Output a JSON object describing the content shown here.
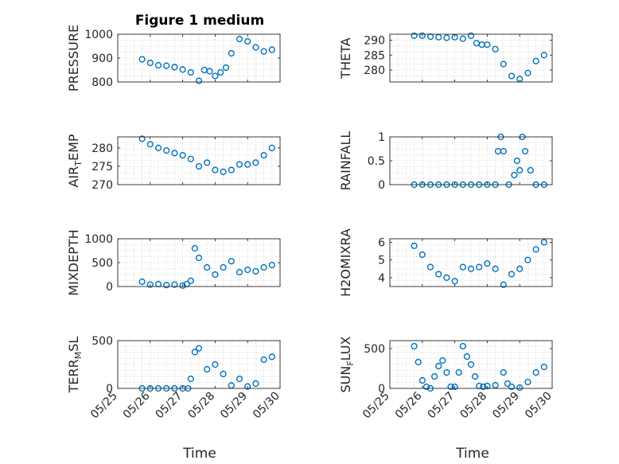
{
  "figure_title": "Figure 1 medium",
  "colors": {
    "marker": "#0072BD",
    "axis": "#262626",
    "grid": "#cfcfcf"
  },
  "chart_data": [
    {
      "type": "scatter",
      "id": "pressure",
      "ylabel": "PRESSURE",
      "xlim": [
        "05/25",
        "05/30"
      ],
      "ylim": [
        800,
        1000
      ],
      "yticks": [
        800,
        900,
        1000
      ],
      "x": [
        "05/25 18:00",
        "05/26 00:00",
        "05/26 06:00",
        "05/26 12:00",
        "05/26 18:00",
        "05/27 00:00",
        "05/27 06:00",
        "05/27 12:00",
        "05/27 16:00",
        "05/27 20:00",
        "05/28 00:00",
        "05/28 04:00",
        "05/28 08:00",
        "05/28 12:00",
        "05/28 18:00",
        "05/29 00:00",
        "05/29 06:00",
        "05/29 12:00",
        "05/29 18:00"
      ],
      "y": [
        895,
        880,
        870,
        868,
        862,
        852,
        840,
        805,
        850,
        845,
        825,
        840,
        860,
        920,
        980,
        970,
        945,
        928,
        935
      ]
    },
    {
      "type": "scatter",
      "id": "theta",
      "ylabel": "THETA",
      "xlim": [
        "05/25",
        "05/30"
      ],
      "ylim": [
        276,
        292
      ],
      "yticks": [
        280,
        285,
        290
      ],
      "x": [
        "05/25 18:00",
        "05/26 00:00",
        "05/26 06:00",
        "05/26 12:00",
        "05/26 18:00",
        "05/27 00:00",
        "05/27 06:00",
        "05/27 12:00",
        "05/27 16:00",
        "05/27 20:00",
        "05/28 00:00",
        "05/28 06:00",
        "05/28 12:00",
        "05/28 18:00",
        "05/29 00:00",
        "05/29 06:00",
        "05/29 12:00",
        "05/29 18:00"
      ],
      "y": [
        291.5,
        291.5,
        291.2,
        291.0,
        290.8,
        291.0,
        290.5,
        291.5,
        289.0,
        288.5,
        288.5,
        287.0,
        282.0,
        278.0,
        277.0,
        279.0,
        283.0,
        285.0
      ]
    },
    {
      "type": "scatter",
      "id": "air_temp",
      "ylabel": "AIR_TEMP",
      "xlim": [
        "05/25",
        "05/30"
      ],
      "ylim": [
        270,
        283
      ],
      "yticks": [
        270,
        275,
        280
      ],
      "x": [
        "05/25 18:00",
        "05/26 00:00",
        "05/26 06:00",
        "05/26 12:00",
        "05/26 18:00",
        "05/27 00:00",
        "05/27 06:00",
        "05/27 12:00",
        "05/27 18:00",
        "05/28 00:00",
        "05/28 06:00",
        "05/28 12:00",
        "05/28 18:00",
        "05/29 00:00",
        "05/29 06:00",
        "05/29 12:00",
        "05/29 18:00"
      ],
      "y": [
        282.5,
        281.0,
        280.0,
        279.3,
        278.6,
        278.0,
        277.0,
        275.0,
        276.0,
        274.0,
        273.5,
        274.0,
        275.5,
        275.5,
        276.0,
        278.0,
        280.0
      ]
    },
    {
      "type": "scatter",
      "id": "rainfall",
      "ylabel": "RAINFALL",
      "xlim": [
        "05/25",
        "05/30"
      ],
      "ylim": [
        0,
        1
      ],
      "yticks": [
        0,
        0.5,
        1
      ],
      "x": [
        "05/25 18:00",
        "05/26 00:00",
        "05/26 06:00",
        "05/26 12:00",
        "05/26 18:00",
        "05/27 00:00",
        "05/27 06:00",
        "05/27 12:00",
        "05/27 18:00",
        "05/28 00:00",
        "05/28 06:00",
        "05/28 08:00",
        "05/28 10:00",
        "05/28 12:00",
        "05/28 16:00",
        "05/28 20:00",
        "05/28 22:00",
        "05/29 00:00",
        "05/29 02:00",
        "05/29 04:00",
        "05/29 08:00",
        "05/29 12:00",
        "05/29 18:00"
      ],
      "y": [
        0,
        0,
        0,
        0,
        0,
        0,
        0,
        0,
        0,
        0,
        0,
        0.7,
        1.0,
        0.7,
        0,
        0.2,
        0.5,
        0.3,
        1.0,
        0.7,
        0.3,
        0,
        0
      ]
    },
    {
      "type": "scatter",
      "id": "mixdepth",
      "ylabel": "MIXDEPTH",
      "xlim": [
        "05/25",
        "05/30"
      ],
      "ylim": [
        0,
        1000
      ],
      "yticks": [
        0,
        500,
        1000
      ],
      "x": [
        "05/25 18:00",
        "05/26 00:00",
        "05/26 06:00",
        "05/26 12:00",
        "05/26 18:00",
        "05/27 00:00",
        "05/27 03:00",
        "05/27 06:00",
        "05/27 09:00",
        "05/27 12:00",
        "05/27 18:00",
        "05/28 00:00",
        "05/28 06:00",
        "05/28 12:00",
        "05/28 18:00",
        "05/29 00:00",
        "05/29 06:00",
        "05/29 12:00",
        "05/29 18:00"
      ],
      "y": [
        100,
        40,
        50,
        30,
        40,
        20,
        50,
        120,
        800,
        600,
        400,
        250,
        400,
        530,
        300,
        350,
        320,
        400,
        450
      ]
    },
    {
      "type": "scatter",
      "id": "h2omixra",
      "ylabel": "H2OMIXRA",
      "xlim": [
        "05/25",
        "05/30"
      ],
      "ylim": [
        3.5,
        6.2
      ],
      "yticks": [
        4,
        5,
        6
      ],
      "x": [
        "05/25 18:00",
        "05/26 00:00",
        "05/26 06:00",
        "05/26 12:00",
        "05/26 18:00",
        "05/27 00:00",
        "05/27 06:00",
        "05/27 12:00",
        "05/27 18:00",
        "05/28 00:00",
        "05/28 06:00",
        "05/28 12:00",
        "05/28 18:00",
        "05/29 00:00",
        "05/29 06:00",
        "05/29 12:00",
        "05/29 18:00"
      ],
      "y": [
        5.8,
        5.3,
        4.6,
        4.2,
        4.0,
        3.8,
        4.6,
        4.5,
        4.6,
        4.8,
        4.5,
        3.6,
        4.2,
        4.5,
        5.0,
        5.6,
        6.0
      ]
    },
    {
      "type": "scatter",
      "id": "terr_msl",
      "ylabel": "TERR_MSL",
      "xlim": [
        "05/25",
        "05/30"
      ],
      "ylim": [
        0,
        500
      ],
      "yticks": [
        0,
        500
      ],
      "x": [
        "05/25 18:00",
        "05/26 00:00",
        "05/26 06:00",
        "05/26 12:00",
        "05/26 18:00",
        "05/27 00:00",
        "05/27 04:00",
        "05/27 06:00",
        "05/27 09:00",
        "05/27 12:00",
        "05/27 18:00",
        "05/28 00:00",
        "05/28 06:00",
        "05/28 12:00",
        "05/28 18:00",
        "05/29 00:00",
        "05/29 06:00",
        "05/29 12:00",
        "05/29 18:00"
      ],
      "y": [
        0,
        0,
        0,
        0,
        0,
        0,
        0,
        100,
        380,
        420,
        200,
        250,
        150,
        30,
        100,
        20,
        50,
        300,
        330
      ]
    },
    {
      "type": "scatter",
      "id": "sun_flux",
      "ylabel": "SUN_FLUX",
      "xlim": [
        "05/25",
        "05/30"
      ],
      "ylim": [
        0,
        600
      ],
      "yticks": [
        0,
        500
      ],
      "x": [
        "05/25 18:00",
        "05/25 21:00",
        "05/26 00:00",
        "05/26 03:00",
        "05/26 06:00",
        "05/26 09:00",
        "05/26 12:00",
        "05/26 15:00",
        "05/26 18:00",
        "05/26 21:00",
        "05/27 00:00",
        "05/27 03:00",
        "05/27 06:00",
        "05/27 09:00",
        "05/27 12:00",
        "05/27 15:00",
        "05/27 18:00",
        "05/27 21:00",
        "05/28 00:00",
        "05/28 06:00",
        "05/28 12:00",
        "05/28 15:00",
        "05/28 18:00",
        "05/29 00:00",
        "05/29 06:00",
        "05/29 12:00",
        "05/29 18:00"
      ],
      "y": [
        530,
        330,
        100,
        20,
        0,
        150,
        280,
        350,
        200,
        20,
        20,
        200,
        530,
        400,
        300,
        150,
        30,
        20,
        30,
        40,
        200,
        60,
        20,
        10,
        80,
        200,
        270
      ]
    }
  ],
  "axis_labels": {
    "x_left": "Time",
    "x_right": "Time",
    "x_ticks": [
      "05/25",
      "05/26",
      "05/27",
      "05/28",
      "05/29",
      "05/30"
    ]
  }
}
